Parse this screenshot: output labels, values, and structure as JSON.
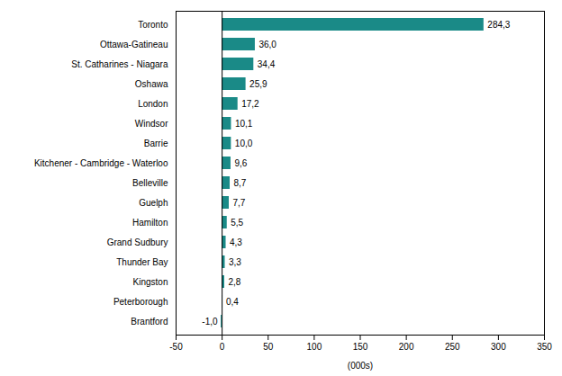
{
  "chart_data": {
    "type": "bar",
    "orientation": "horizontal",
    "categories": [
      "Toronto",
      "Ottawa-Gatineau",
      "St. Catharines - Niagara",
      "Oshawa",
      "London",
      "Windsor",
      "Barrie",
      "Kitchener - Cambridge - Waterloo",
      "Belleville",
      "Guelph",
      "Hamilton",
      "Grand Sudbury",
      "Thunder Bay",
      "Kingston",
      "Peterborough",
      "Brantford"
    ],
    "values": [
      284.3,
      36.0,
      34.4,
      25.9,
      17.2,
      10.1,
      10.0,
      9.6,
      8.7,
      7.7,
      5.5,
      4.3,
      3.3,
      2.8,
      0.4,
      -1.0
    ],
    "value_labels": [
      "284,3",
      "36,0",
      "34,4",
      "25,9",
      "17,2",
      "10,1",
      "10,0",
      "9,6",
      "8,7",
      "7,7",
      "5,5",
      "4,3",
      "3,3",
      "2,8",
      "0,4",
      "-1,0"
    ],
    "color": "#1a8a87",
    "xlabel": "(000s)",
    "xlim": [
      -50,
      350
    ],
    "xticks": [
      -50,
      0,
      50,
      100,
      150,
      200,
      250,
      300,
      350
    ],
    "grid": false,
    "data_labels": true
  }
}
